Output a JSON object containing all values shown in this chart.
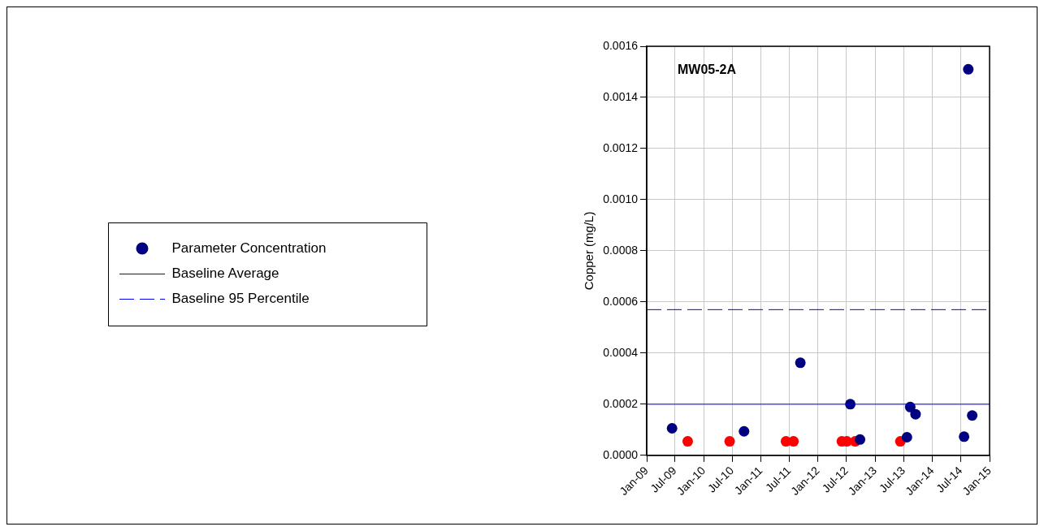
{
  "chart_data": {
    "type": "scatter",
    "annotations": [
      "MW05-2A"
    ],
    "ylabel": "Copper (mg/L)",
    "xlim": [
      "2009-01-01",
      "2015-01-01"
    ],
    "xticks": [
      {
        "value": "2009-01-01",
        "label": "Jan-09"
      },
      {
        "value": "2009-07-01",
        "label": "Jul-09"
      },
      {
        "value": "2010-01-01",
        "label": "Jan-10"
      },
      {
        "value": "2010-07-01",
        "label": "Jul-10"
      },
      {
        "value": "2011-01-01",
        "label": "Jan-11"
      },
      {
        "value": "2011-07-01",
        "label": "Jul-11"
      },
      {
        "value": "2012-01-01",
        "label": "Jan-12"
      },
      {
        "value": "2012-07-01",
        "label": "Jul-12"
      },
      {
        "value": "2013-01-01",
        "label": "Jan-13"
      },
      {
        "value": "2013-07-01",
        "label": "Jul-13"
      },
      {
        "value": "2014-01-01",
        "label": "Jan-14"
      },
      {
        "value": "2014-07-01",
        "label": "Jul-14"
      },
      {
        "value": "2015-01-01",
        "label": "Jan-15"
      }
    ],
    "ylim": [
      0,
      0.0016
    ],
    "yticks": [
      {
        "value": 0,
        "label": "0.0000"
      },
      {
        "value": 0.0002,
        "label": "0.0002"
      },
      {
        "value": 0.0004,
        "label": "0.0004"
      },
      {
        "value": 0.0006,
        "label": "0.0006"
      },
      {
        "value": 0.0008,
        "label": "0.0008"
      },
      {
        "value": 0.001,
        "label": "0.0010"
      },
      {
        "value": 0.0012,
        "label": "0.0012"
      },
      {
        "value": 0.0014,
        "label": "0.0014"
      },
      {
        "value": 0.0016,
        "label": "0.0016"
      }
    ],
    "grid": true,
    "legend": "left",
    "marker": "circle",
    "series": [
      {
        "name": "Parameter Concentration",
        "color": "#000080",
        "x": [
          "2009-06-12",
          "2010-09-15",
          "2011-09-10",
          "2012-07-25",
          "2012-09-25",
          "2013-07-22",
          "2013-08-12",
          "2013-09-15",
          "2014-07-22",
          "2014-08-18",
          "2014-09-12"
        ],
        "values": [
          0.000106,
          9.4e-05,
          0.000362,
          0.0002,
          6.2e-05,
          7.1e-05,
          0.000189,
          0.000161,
          7.3e-05,
          0.00151,
          0.000156
        ]
      },
      {
        "color": "#ff0000",
        "x": [
          "2009-09-20",
          "2010-06-15",
          "2011-06-10",
          "2011-07-28",
          "2012-06-01",
          "2012-07-03",
          "2012-08-25",
          "2013-06-10"
        ],
        "values": [
          5.5e-05,
          5.5e-05,
          5.5e-05,
          5.5e-05,
          5.5e-05,
          5.5e-05,
          5.5e-05,
          5.5e-05
        ]
      }
    ],
    "ref_lines": [
      {
        "axis": "y",
        "value": 0.0002,
        "label": "Baseline Average",
        "color": "#0000ff",
        "line_style": "solid"
      },
      {
        "axis": "y",
        "value": 0.00057,
        "label": "Baseline 95 Percentile",
        "color": "#0000ff",
        "line_style": "dashed"
      }
    ]
  }
}
